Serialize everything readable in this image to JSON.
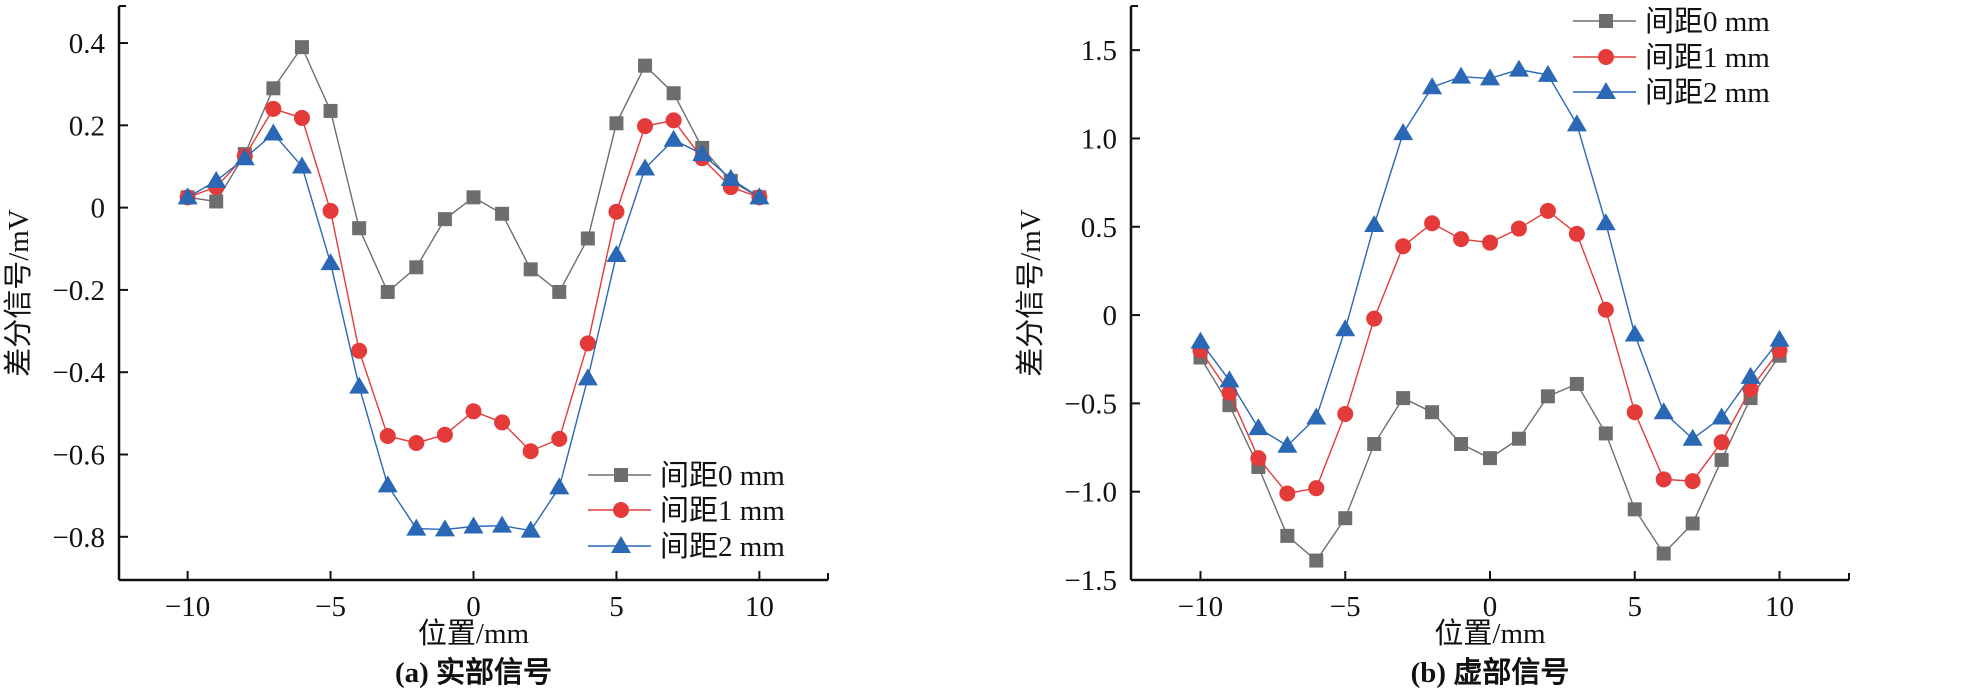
{
  "chart_data": [
    {
      "type": "line",
      "caption": "(a) 实部信号",
      "xlabel": "位置/mm",
      "ylabel": "差分信号/mV",
      "xlim": [
        -12.4,
        12.4
      ],
      "ylim": [
        -0.905,
        0.49
      ],
      "xticks": [
        -10,
        -5,
        0,
        5,
        10
      ],
      "xtick_labels": [
        "−10",
        "−5",
        "0",
        "5",
        "10"
      ],
      "yticks": [
        0.4,
        0.2,
        0,
        -0.2,
        -0.4,
        -0.6,
        -0.8
      ],
      "ytick_labels": [
        "0.4",
        "0.2",
        "0",
        "−0.2",
        "−0.4",
        "−0.6",
        "−0.8"
      ],
      "grid": false,
      "legend_position": "bottom-right",
      "x": [
        -10,
        -9,
        -8,
        -7,
        -6,
        -5,
        -4,
        -3,
        -2,
        -1,
        0,
        1,
        2,
        3,
        4,
        5,
        6,
        7,
        8,
        9,
        10
      ],
      "series": [
        {
          "name": "间距0 mm",
          "color": "#6e6e6e",
          "marker": "square",
          "values": [
            0.025,
            0.015,
            0.13,
            0.29,
            0.39,
            0.235,
            -0.05,
            -0.205,
            -0.145,
            -0.028,
            0.025,
            -0.015,
            -0.15,
            -0.205,
            -0.075,
            0.205,
            0.345,
            0.278,
            0.145,
            0.065,
            0.025
          ]
        },
        {
          "name": "间距1 mm",
          "color": "#e43a3a",
          "marker": "circle",
          "values": [
            0.025,
            0.05,
            0.125,
            0.24,
            0.218,
            -0.008,
            -0.348,
            -0.555,
            -0.572,
            -0.552,
            -0.495,
            -0.522,
            -0.592,
            -0.562,
            -0.33,
            -0.01,
            0.198,
            0.212,
            0.12,
            0.05,
            0.025
          ]
        },
        {
          "name": "间距2 mm",
          "color": "#2a67b5",
          "marker": "triangle",
          "values": [
            0.025,
            0.065,
            0.12,
            0.18,
            0.1,
            -0.135,
            -0.435,
            -0.675,
            -0.78,
            -0.782,
            -0.775,
            -0.773,
            -0.785,
            -0.68,
            -0.415,
            -0.115,
            0.095,
            0.165,
            0.13,
            0.07,
            0.025
          ]
        }
      ]
    },
    {
      "type": "line",
      "caption": "(b) 虚部信号",
      "xlabel": "位置/mm",
      "ylabel": "差分信号/mV",
      "xlim": [
        -12.4,
        12.4
      ],
      "ylim": [
        -1.5,
        1.75
      ],
      "xticks": [
        -10,
        -5,
        0,
        5,
        10
      ],
      "xtick_labels": [
        "−10",
        "−5",
        "0",
        "5",
        "10"
      ],
      "yticks": [
        1.5,
        1.0,
        0.5,
        0,
        -0.5,
        -1.0,
        -1.5
      ],
      "ytick_labels": [
        "1.5",
        "1.0",
        "0.5",
        "0",
        "−0.5",
        "−1.0",
        "−1.5"
      ],
      "grid": false,
      "legend_position": "top-right",
      "x": [
        -10,
        -9,
        -8,
        -7,
        -6,
        -5,
        -4,
        -3,
        -2,
        -1,
        0,
        1,
        2,
        3,
        4,
        5,
        6,
        7,
        8,
        9,
        10
      ],
      "series": [
        {
          "name": "间距0 mm",
          "color": "#6e6e6e",
          "marker": "square",
          "values": [
            -0.24,
            -0.51,
            -0.86,
            -1.25,
            -1.39,
            -1.15,
            -0.73,
            -0.47,
            -0.55,
            -0.73,
            -0.81,
            -0.7,
            -0.46,
            -0.39,
            -0.67,
            -1.1,
            -1.35,
            -1.18,
            -0.82,
            -0.47,
            -0.23
          ]
        },
        {
          "name": "间距1 mm",
          "color": "#e43a3a",
          "marker": "circle",
          "values": [
            -0.2,
            -0.44,
            -0.81,
            -1.01,
            -0.98,
            -0.56,
            -0.02,
            0.39,
            0.52,
            0.43,
            0.41,
            0.49,
            0.59,
            0.46,
            0.03,
            -0.55,
            -0.93,
            -0.94,
            -0.72,
            -0.42,
            -0.2
          ]
        },
        {
          "name": "间距2 mm",
          "color": "#2a67b5",
          "marker": "triangle",
          "values": [
            -0.15,
            -0.37,
            -0.64,
            -0.74,
            -0.58,
            -0.08,
            0.51,
            1.03,
            1.29,
            1.35,
            1.34,
            1.39,
            1.36,
            1.08,
            0.52,
            -0.11,
            -0.55,
            -0.7,
            -0.58,
            -0.35,
            -0.14
          ]
        }
      ]
    }
  ]
}
